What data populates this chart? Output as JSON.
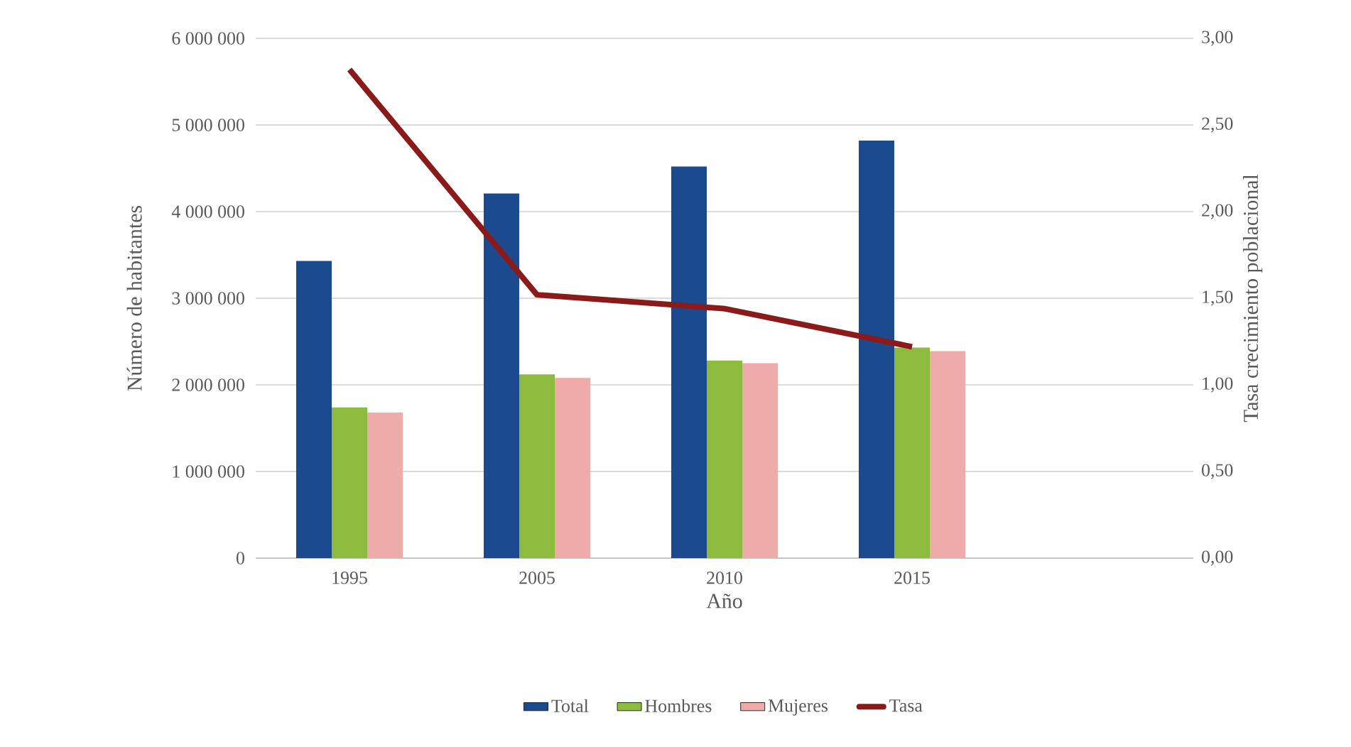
{
  "chart_data": {
    "type": "bar",
    "xlabel": "Año",
    "ylabel": "Número de habitantes",
    "y2label": "Tasa  crecimiento poblacional",
    "categories": [
      "1995",
      "2005",
      "2010",
      "2015",
      null
    ],
    "series": [
      {
        "name": "Total",
        "color": "#1c4a8e",
        "values": [
          3430000,
          4210000,
          4520000,
          4820000,
          null
        ]
      },
      {
        "name": "Hombres",
        "color": "#8cbb3e",
        "values": [
          1740000,
          2120000,
          2280000,
          2430000,
          null
        ]
      },
      {
        "name": "Mujeres",
        "color": "#efaaaa",
        "values": [
          1680000,
          2080000,
          2250000,
          2390000,
          null
        ]
      },
      {
        "name": "Tasa",
        "color": "#8b1a1a",
        "type": "line",
        "axis": "y2",
        "values": [
          2.82,
          1.52,
          1.44,
          1.22,
          null
        ]
      }
    ],
    "ylim": [
      0,
      6000000
    ],
    "yticks": [
      {
        "value": 0,
        "label": "0"
      },
      {
        "value": 1000000,
        "label": "1 000 000"
      },
      {
        "value": 2000000,
        "label": "2 000 000"
      },
      {
        "value": 3000000,
        "label": "3 000 000"
      },
      {
        "value": 4000000,
        "label": "4 000 000"
      },
      {
        "value": 5000000,
        "label": "5 000 000"
      },
      {
        "value": 6000000,
        "label": "6 000 000"
      }
    ],
    "y2lim": [
      0,
      3
    ],
    "y2ticks": [
      {
        "value": 0,
        "label": "0,00"
      },
      {
        "value": 0.5,
        "label": "0,50"
      },
      {
        "value": 1,
        "label": "1,00"
      },
      {
        "value": 1.5,
        "label": "1,50"
      },
      {
        "value": 2,
        "label": "2,00"
      },
      {
        "value": 2.5,
        "label": "2,50"
      },
      {
        "value": 3,
        "label": "3,00"
      }
    ],
    "grid": "y",
    "legend": "bottom"
  }
}
